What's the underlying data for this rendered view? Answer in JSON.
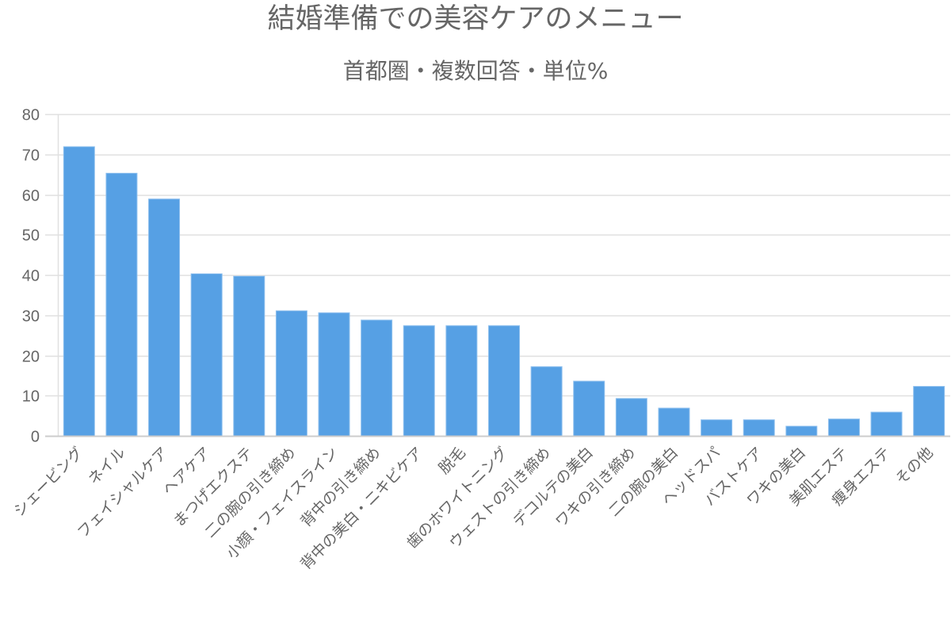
{
  "title": "結婚準備での美容ケアのメニュー",
  "subtitle": "首都圏・複数回答・単位%",
  "colors": {
    "bar": "#56a0e4",
    "bar_border": "#8fc0ee",
    "grid": "#e0e0e0",
    "axis": "#cccccc",
    "text": "#666666"
  },
  "chart_data": {
    "type": "bar",
    "title": "結婚準備での美容ケアのメニュー",
    "subtitle": "首都圏・複数回答・単位%",
    "xlabel": "",
    "ylabel": "",
    "ylim": [
      0,
      80
    ],
    "yticks": [
      0,
      10,
      20,
      30,
      40,
      50,
      60,
      70,
      80
    ],
    "grid": true,
    "legend": null,
    "categories": [
      "シェービング",
      "ネイル",
      "フェイシャルケア",
      "ヘアケア",
      "まつげエクステ",
      "二の腕の引き締め",
      "小顔・フェイスライン",
      "背中の引き締め",
      "背中の美白・ニキビケア",
      "脱毛",
      "歯のホワイトニング",
      "ウェストの引き締め",
      "デコルテの美白",
      "ワキの引き締め",
      "二の腕の美白",
      "ヘッドスパ",
      "バストケア",
      "ワキの美白",
      "美肌エステ",
      "痩身エステ",
      "その他"
    ],
    "values": [
      71.9,
      65.3,
      58.9,
      40.3,
      39.7,
      31.1,
      30.6,
      28.8,
      27.4,
      27.4,
      27.4,
      17.2,
      13.6,
      9.3,
      6.9,
      4.0,
      4.0,
      2.4,
      4.2,
      5.9,
      12.3
    ]
  }
}
